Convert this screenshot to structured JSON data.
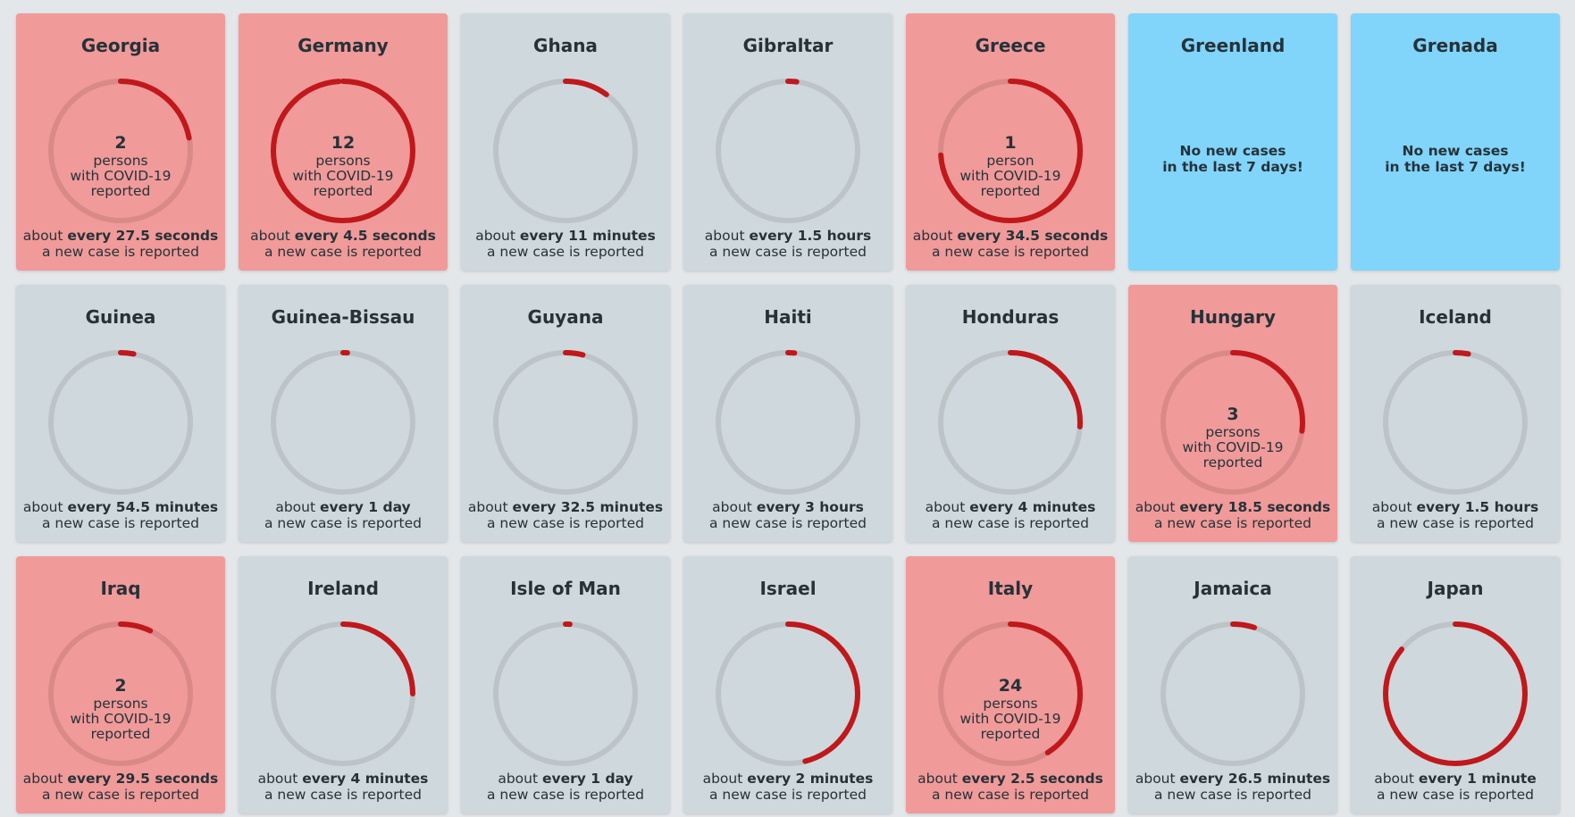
{
  "cards": [
    {
      "name": "Georgia",
      "color": "#f09a9a",
      "count": 2,
      "lines": [
        "persons",
        "with COVID-19",
        "reported"
      ],
      "progress": 0.22,
      "prefix": "about",
      "interval": "every 27.5 seconds",
      "footer": "a new case is reported"
    },
    {
      "name": "Germany",
      "color": "#f09a9a",
      "count": 12,
      "lines": [
        "persons",
        "with COVID-19",
        "reported"
      ],
      "progress": 0.99,
      "prefix": "about",
      "interval": "every 4.5 seconds",
      "footer": "a new case is reported"
    },
    {
      "name": "Ghana",
      "color": "#cfd8dc",
      "progress": 0.1,
      "prefix": "about",
      "interval": "every 11 minutes",
      "footer": "a new case is reported"
    },
    {
      "name": "Gibraltar",
      "color": "#cfd8dc",
      "progress": 0.02,
      "prefix": "about",
      "interval": "every 1.5 hours",
      "footer": "a new case is reported"
    },
    {
      "name": "Greece",
      "color": "#f09a9a",
      "count": 1,
      "lines": [
        "person",
        "with COVID-19",
        "reported"
      ],
      "progress": 0.74,
      "prefix": "about",
      "interval": "every 34.5 seconds",
      "footer": "a new case is reported"
    },
    {
      "name": "Greenland",
      "color": "#81d4fa",
      "message": [
        "No new cases",
        "in the last 7 days!"
      ]
    },
    {
      "name": "Grenada",
      "color": "#81d4fa",
      "message": [
        "No new cases",
        "in the last 7 days!"
      ]
    },
    {
      "name": "Guinea",
      "color": "#cfd8dc",
      "progress": 0.03,
      "prefix": "about",
      "interval": "every 54.5 minutes",
      "footer": "a new case is reported"
    },
    {
      "name": "Guinea-Bissau",
      "color": "#cfd8dc",
      "progress": 0.01,
      "prefix": "about",
      "interval": "every 1 day",
      "footer": "a new case is reported"
    },
    {
      "name": "Guyana",
      "color": "#cfd8dc",
      "progress": 0.04,
      "prefix": "about",
      "interval": "every 32.5 minutes",
      "footer": "a new case is reported"
    },
    {
      "name": "Haiti",
      "color": "#cfd8dc",
      "progress": 0.015,
      "prefix": "about",
      "interval": "every 3 hours",
      "footer": "a new case is reported"
    },
    {
      "name": "Honduras",
      "color": "#cfd8dc",
      "progress": 0.26,
      "prefix": "about",
      "interval": "every 4 minutes",
      "footer": "a new case is reported"
    },
    {
      "name": "Hungary",
      "color": "#f09a9a",
      "count": 3,
      "lines": [
        "persons",
        "with COVID-19",
        "reported"
      ],
      "progress": 0.27,
      "prefix": "about",
      "interval": "every 18.5 seconds",
      "footer": "a new case is reported"
    },
    {
      "name": "Iceland",
      "color": "#cfd8dc",
      "progress": 0.03,
      "prefix": "about",
      "interval": "every 1.5 hours",
      "footer": "a new case is reported"
    },
    {
      "name": "Iraq",
      "color": "#f09a9a",
      "count": 2,
      "lines": [
        "persons",
        "with COVID-19",
        "reported"
      ],
      "progress": 0.07,
      "prefix": "about",
      "interval": "every 29.5 seconds",
      "footer": "a new case is reported"
    },
    {
      "name": "Ireland",
      "color": "#cfd8dc",
      "progress": 0.25,
      "prefix": "about",
      "interval": "every 4 minutes",
      "footer": "a new case is reported"
    },
    {
      "name": "Isle of Man",
      "color": "#cfd8dc",
      "progress": 0.01,
      "prefix": "about",
      "interval": "every 1 day",
      "footer": "a new case is reported"
    },
    {
      "name": "Israel",
      "color": "#cfd8dc",
      "progress": 0.46,
      "prefix": "about",
      "interval": "every 2 minutes",
      "footer": "a new case is reported"
    },
    {
      "name": "Italy",
      "color": "#f09a9a",
      "count": 24,
      "lines": [
        "persons",
        "with COVID-19",
        "reported"
      ],
      "progress": 0.41,
      "prefix": "about",
      "interval": "every 2.5 seconds",
      "footer": "a new case is reported"
    },
    {
      "name": "Jamaica",
      "color": "#cfd8dc",
      "progress": 0.05,
      "prefix": "about",
      "interval": "every 26.5 minutes",
      "footer": "a new case is reported"
    },
    {
      "name": "Japan",
      "color": "#cfd8dc",
      "progress": 0.86,
      "prefix": "about",
      "interval": "every 1 minute",
      "footer": "a new case is reported"
    }
  ]
}
